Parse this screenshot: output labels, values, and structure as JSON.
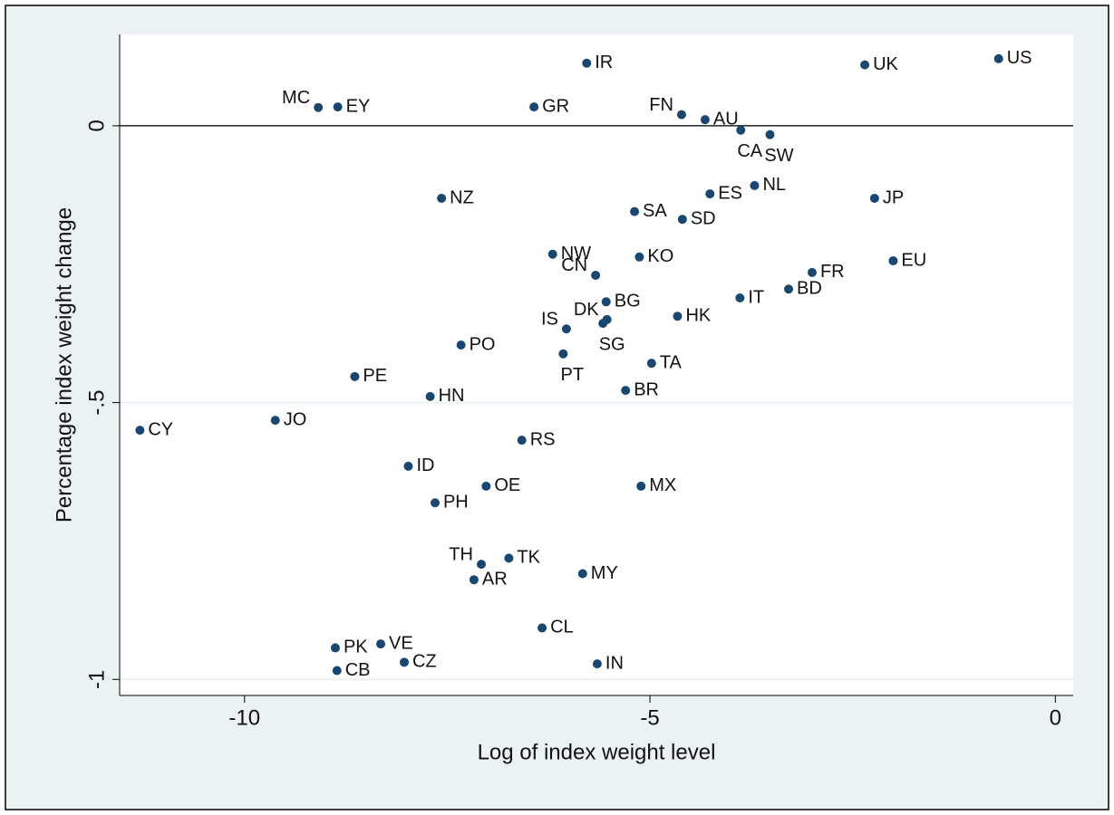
{
  "chart_data": {
    "type": "scatter",
    "x_label": "Log of index weight level",
    "y_label": "Percentage index weight change",
    "color": "#1a476f",
    "xlim": [
      -11.54,
      0.22
    ],
    "ylim": [
      -1.029,
      0.165
    ],
    "xticks": [
      -10,
      -5,
      0
    ],
    "yticks": [
      {
        "value": -1,
        "label": "-1"
      },
      {
        "value": -0.5,
        "label": "-.5"
      },
      0
    ],
    "grid": true,
    "yline": 0,
    "labels": [
      "US",
      "UK",
      "IR",
      "MC",
      "EY",
      "GR",
      "FN",
      "AU",
      "CA",
      "SW",
      "NZ",
      "ES",
      "NL",
      "JP",
      "SA",
      "SD",
      "NW",
      "KO",
      "EU",
      "FR",
      "CN",
      "BD",
      "IT",
      "BG",
      "HK",
      "DK",
      "SG",
      "IS",
      "PO",
      "PT",
      "TA",
      "PE",
      "HN",
      "BR",
      "JO",
      "CY",
      "RS",
      "ID",
      "OE",
      "MX",
      "PH",
      "TK",
      "TH",
      "MY",
      "AR",
      "CL",
      "PK",
      "VE",
      "CZ",
      "CB",
      "IN"
    ],
    "x": [
      -0.7,
      -2.35,
      -5.78,
      -9.09,
      -8.85,
      -6.43,
      -4.61,
      -4.32,
      -3.88,
      -3.52,
      -7.57,
      -4.26,
      -3.71,
      -2.23,
      -5.19,
      -4.6,
      -6.2,
      -5.13,
      -2.0,
      -3.0,
      -5.67,
      -3.29,
      -3.89,
      -5.54,
      -4.66,
      -5.53,
      -5.58,
      -6.03,
      -7.33,
      -6.07,
      -4.98,
      -8.64,
      -7.71,
      -5.3,
      -9.62,
      -11.29,
      -6.58,
      -7.98,
      -7.02,
      -5.11,
      -7.65,
      -6.74,
      -7.08,
      -5.83,
      -7.17,
      -6.33,
      -8.88,
      -8.32,
      -8.03,
      -8.86,
      -5.65
    ],
    "values": [
      0.121,
      0.11,
      0.113,
      0.033,
      0.034,
      0.034,
      0.02,
      0.011,
      -0.008,
      -0.016,
      -0.131,
      -0.123,
      -0.108,
      -0.131,
      -0.155,
      -0.169,
      -0.232,
      -0.237,
      -0.244,
      -0.265,
      -0.27,
      -0.295,
      -0.311,
      -0.318,
      -0.344,
      -0.35,
      -0.357,
      -0.367,
      -0.396,
      -0.412,
      -0.429,
      -0.453,
      -0.489,
      -0.478,
      -0.532,
      -0.55,
      -0.568,
      -0.615,
      -0.651,
      -0.651,
      -0.681,
      -0.781,
      -0.792,
      -0.809,
      -0.82,
      -0.907,
      -0.943,
      -0.936,
      -0.969,
      -0.984,
      -0.972
    ]
  }
}
